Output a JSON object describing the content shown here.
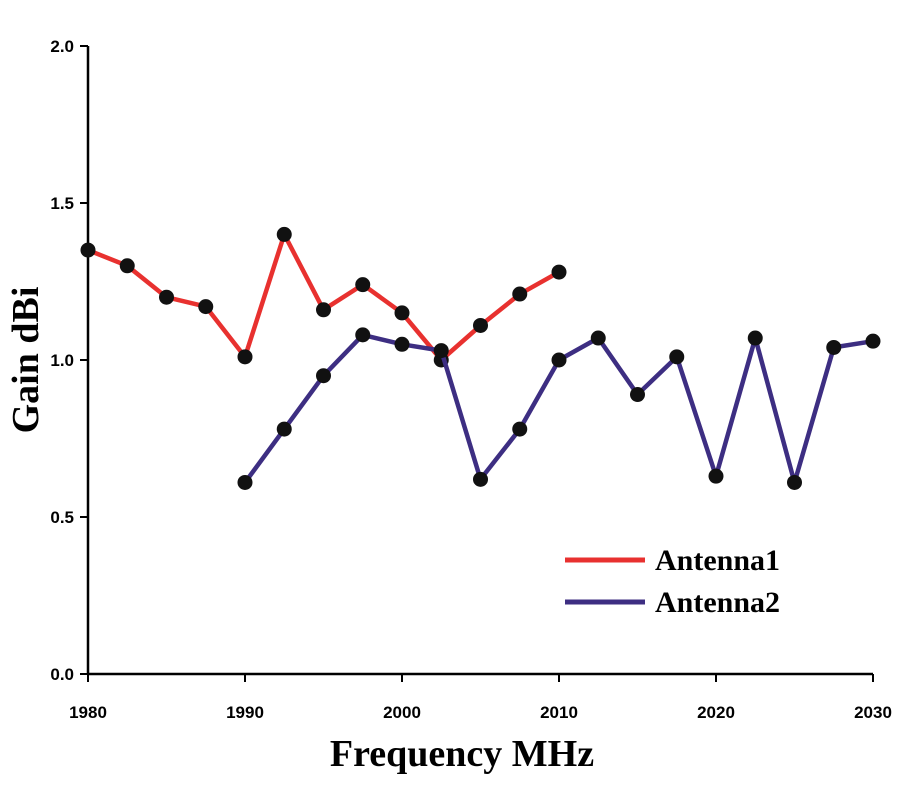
{
  "chart_data": {
    "type": "line",
    "title": "",
    "xlabel": "Frequency MHz",
    "ylabel": "Gain dBi",
    "xlim": [
      1980,
      2030
    ],
    "ylim": [
      0.0,
      2.0
    ],
    "xticks": [
      1980,
      1990,
      2000,
      2010,
      2020,
      2030
    ],
    "xtick_labels": [
      "1980",
      "1990",
      "2000",
      "2010",
      "2020",
      "2030"
    ],
    "yticks": [
      0.0,
      0.5,
      1.0,
      1.5,
      2.0
    ],
    "ytick_labels": [
      "0.0",
      "0.5",
      "1.0",
      "1.5",
      "2.0"
    ],
    "grid": false,
    "legend_position": "bottom-right",
    "series": [
      {
        "name": "Antenna1",
        "color": "#e8312f",
        "x": [
          1980,
          1982.5,
          1985,
          1987.5,
          1990,
          1992.5,
          1995,
          1997.5,
          2000,
          2002.5,
          2005,
          2007.5,
          2010
        ],
        "values": [
          1.35,
          1.3,
          1.2,
          1.17,
          1.01,
          1.4,
          1.16,
          1.24,
          1.15,
          1.0,
          1.11,
          1.21,
          1.28
        ]
      },
      {
        "name": "Antenna2",
        "color": "#3d2e82",
        "x": [
          1990,
          1992.5,
          1995,
          1997.5,
          2000,
          2002.5,
          2005,
          2007.5,
          2010,
          2012.5,
          2015,
          2017.5,
          2020,
          2022.5,
          2025,
          2027.5,
          2030
        ],
        "values": [
          0.61,
          0.78,
          0.95,
          1.08,
          1.05,
          1.03,
          0.62,
          0.78,
          1.0,
          1.07,
          0.89,
          1.01,
          0.63,
          1.07,
          0.61,
          1.04,
          1.06
        ]
      }
    ],
    "marker_color": "#111111"
  }
}
